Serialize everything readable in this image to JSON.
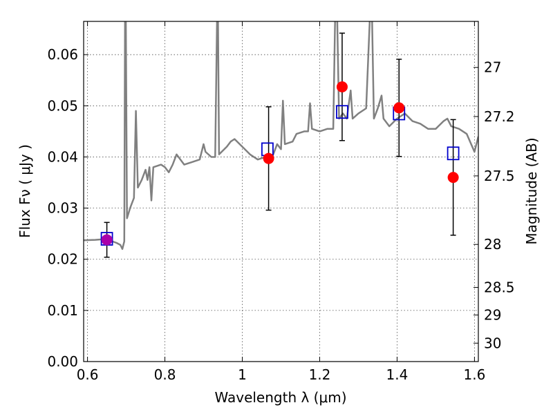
{
  "chart_data": {
    "type": "scatter",
    "xlabel": "Wavelength  λ (μm)",
    "ylabel_left": "Flux  Fν  ( μJy )",
    "ylabel_right": "Magnitude (AB)",
    "xlim": [
      0.59,
      1.61
    ],
    "ylim": [
      0.0,
      0.0665
    ],
    "x_ticks": [
      0.6,
      0.8,
      1.0,
      1.2,
      1.4,
      1.6
    ],
    "x_tick_labels": [
      "0.6",
      "0.8",
      "1",
      "1.2",
      "1.4",
      "1.6"
    ],
    "y_ticks": [
      0.0,
      0.01,
      0.02,
      0.03,
      0.04,
      0.05,
      0.06
    ],
    "y_tick_labels": [
      "0.00",
      "0.01",
      "0.02",
      "0.03",
      "0.04",
      "0.05",
      "0.06"
    ],
    "right_ticks": [
      {
        "label": "27",
        "flux": 0.0575
      },
      {
        "label": "27.2",
        "flux": 0.0479
      },
      {
        "label": "27.5",
        "flux": 0.0363
      },
      {
        "label": "28",
        "flux": 0.0229
      },
      {
        "label": "28.5",
        "flux": 0.0145
      },
      {
        "label": "29",
        "flux": 0.0091
      },
      {
        "label": "30",
        "flux": 0.0036
      }
    ],
    "grid": true,
    "spectrum": {
      "color": "#808080",
      "points": [
        [
          0.59,
          0.0237
        ],
        [
          0.62,
          0.0238
        ],
        [
          0.64,
          0.0239
        ],
        [
          0.66,
          0.0236
        ],
        [
          0.675,
          0.0232
        ],
        [
          0.685,
          0.0228
        ],
        [
          0.69,
          0.022
        ],
        [
          0.695,
          0.0235
        ],
        [
          0.697,
          0.068
        ],
        [
          0.699,
          0.068
        ],
        [
          0.702,
          0.028
        ],
        [
          0.71,
          0.03
        ],
        [
          0.715,
          0.031
        ],
        [
          0.72,
          0.032
        ],
        [
          0.725,
          0.049
        ],
        [
          0.73,
          0.034
        ],
        [
          0.74,
          0.0355
        ],
        [
          0.75,
          0.0375
        ],
        [
          0.755,
          0.0355
        ],
        [
          0.76,
          0.038
        ],
        [
          0.765,
          0.0315
        ],
        [
          0.77,
          0.038
        ],
        [
          0.79,
          0.0385
        ],
        [
          0.8,
          0.038
        ],
        [
          0.81,
          0.037
        ],
        [
          0.82,
          0.0385
        ],
        [
          0.825,
          0.0395
        ],
        [
          0.83,
          0.0405
        ],
        [
          0.85,
          0.0385
        ],
        [
          0.87,
          0.039
        ],
        [
          0.89,
          0.0395
        ],
        [
          0.9,
          0.0425
        ],
        [
          0.905,
          0.041
        ],
        [
          0.92,
          0.04
        ],
        [
          0.93,
          0.04
        ],
        [
          0.935,
          0.068
        ],
        [
          0.937,
          0.068
        ],
        [
          0.94,
          0.0405
        ],
        [
          0.96,
          0.042
        ],
        [
          0.97,
          0.043
        ],
        [
          0.98,
          0.0435
        ],
        [
          1.0,
          0.042
        ],
        [
          1.02,
          0.0405
        ],
        [
          1.04,
          0.0395
        ],
        [
          1.06,
          0.04
        ],
        [
          1.08,
          0.0405
        ],
        [
          1.09,
          0.0425
        ],
        [
          1.1,
          0.0415
        ],
        [
          1.105,
          0.051
        ],
        [
          1.11,
          0.0425
        ],
        [
          1.13,
          0.043
        ],
        [
          1.14,
          0.0445
        ],
        [
          1.16,
          0.045
        ],
        [
          1.17,
          0.045
        ],
        [
          1.175,
          0.0505
        ],
        [
          1.18,
          0.0455
        ],
        [
          1.2,
          0.045
        ],
        [
          1.22,
          0.0455
        ],
        [
          1.235,
          0.0455
        ],
        [
          1.24,
          0.068
        ],
        [
          1.245,
          0.068
        ],
        [
          1.25,
          0.0475
        ],
        [
          1.26,
          0.0485
        ],
        [
          1.27,
          0.0475
        ],
        [
          1.28,
          0.053
        ],
        [
          1.285,
          0.0475
        ],
        [
          1.3,
          0.0485
        ],
        [
          1.32,
          0.0495
        ],
        [
          1.33,
          0.068
        ],
        [
          1.335,
          0.068
        ],
        [
          1.34,
          0.0475
        ],
        [
          1.35,
          0.0495
        ],
        [
          1.36,
          0.052
        ],
        [
          1.365,
          0.0475
        ],
        [
          1.38,
          0.046
        ],
        [
          1.4,
          0.0475
        ],
        [
          1.42,
          0.0485
        ],
        [
          1.44,
          0.047
        ],
        [
          1.46,
          0.0465
        ],
        [
          1.48,
          0.0455
        ],
        [
          1.5,
          0.0455
        ],
        [
          1.52,
          0.047
        ],
        [
          1.53,
          0.0475
        ],
        [
          1.54,
          0.046
        ],
        [
          1.56,
          0.0455
        ],
        [
          1.58,
          0.0445
        ],
        [
          1.6,
          0.041
        ],
        [
          1.61,
          0.044
        ]
      ]
    },
    "model_points": {
      "marker": "square",
      "color": "#0000cc",
      "x": [
        0.65,
        1.065,
        1.258,
        1.405,
        1.545
      ],
      "y": [
        0.024,
        0.0415,
        0.0488,
        0.0485,
        0.0407
      ]
    },
    "observed_points": {
      "marker": "circle",
      "color": "#ff0000",
      "x": [
        0.65,
        1.068,
        1.258,
        1.405,
        1.545
      ],
      "y": [
        0.0238,
        0.0397,
        0.0537,
        0.0496,
        0.036
      ],
      "yerr_low": [
        0.0034,
        0.0101,
        0.0105,
        0.0095,
        0.0113
      ],
      "yerr_high": [
        0.0034,
        0.0101,
        0.0105,
        0.0095,
        0.0113
      ],
      "colors": [
        "#aa00aa",
        "#ff0000",
        "#ff0000",
        "#ff0000",
        "#ff0000"
      ]
    }
  }
}
